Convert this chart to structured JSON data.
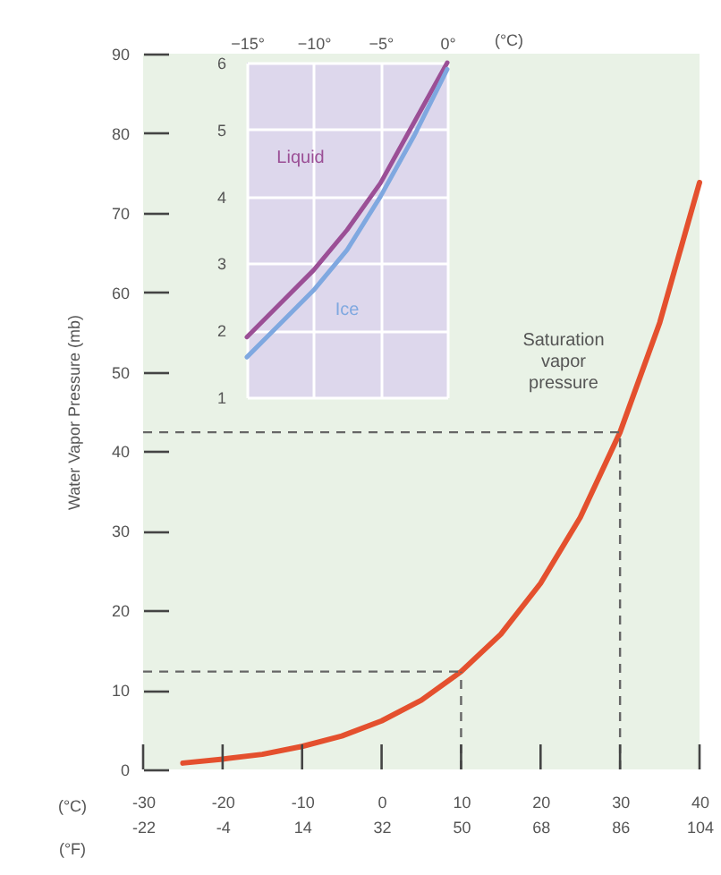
{
  "chart_data": [
    {
      "type": "line",
      "ylabel": "Water Vapor Pressure (mb)",
      "xlabel": "(°C)",
      "x2label": "(°F)",
      "x": [
        -25,
        -20,
        -15,
        -10,
        -5,
        0,
        5,
        10,
        15,
        20,
        25,
        30,
        35,
        40
      ],
      "series": [
        {
          "name": "Saturation vapor pressure",
          "color": "#e4502e",
          "values": [
            0.8,
            1.3,
            1.9,
            2.9,
            4.2,
            6.1,
            8.7,
            12.3,
            17.0,
            23.4,
            31.7,
            42.4,
            56.2,
            73.8
          ]
        }
      ],
      "xlim": [
        -30,
        40
      ],
      "xticks": [
        -30,
        -20,
        -10,
        0,
        10,
        20,
        30,
        40
      ],
      "x2lim": [
        -22,
        104
      ],
      "x2ticks": [
        -22,
        -4,
        14,
        32,
        50,
        68,
        86,
        104
      ],
      "ylim": [
        0,
        90
      ],
      "yticks": [
        0,
        10,
        20,
        30,
        40,
        50,
        60,
        70,
        80,
        90
      ],
      "ref_lines": [
        {
          "axis": "x",
          "value": 10,
          "color": "#666666",
          "line_style": "dashed"
        },
        {
          "axis": "y",
          "value": 12.3,
          "color": "#666666",
          "line_style": "dashed"
        },
        {
          "axis": "x",
          "value": 30,
          "color": "#666666",
          "line_style": "dashed"
        },
        {
          "axis": "y",
          "value": 42.4,
          "color": "#666666",
          "line_style": "dashed"
        }
      ],
      "grid": false
    },
    {
      "type": "line",
      "xlabel": "(°C)",
      "x": [
        -15,
        -12.5,
        -10,
        -7.5,
        -5,
        -2.5,
        0
      ],
      "series": [
        {
          "name": "Liquid",
          "color": "#9b4f96",
          "values": [
            1.9,
            2.4,
            2.9,
            3.5,
            4.2,
            5.1,
            6.0
          ]
        },
        {
          "name": "Ice",
          "color": "#7fa8e0",
          "values": [
            1.6,
            2.1,
            2.6,
            3.2,
            4.0,
            4.9,
            5.9
          ]
        }
      ],
      "xlim": [
        -15,
        0
      ],
      "xticks": [
        {
          "value": -15,
          "label": "−15°"
        },
        {
          "value": -10,
          "label": "−10°"
        },
        {
          "value": -5,
          "label": "−5°"
        },
        {
          "value": 0,
          "label": "0°"
        }
      ],
      "ylim": [
        1,
        6
      ],
      "yticks": [
        1,
        2,
        3,
        4,
        5,
        6
      ],
      "grid": true
    }
  ]
}
